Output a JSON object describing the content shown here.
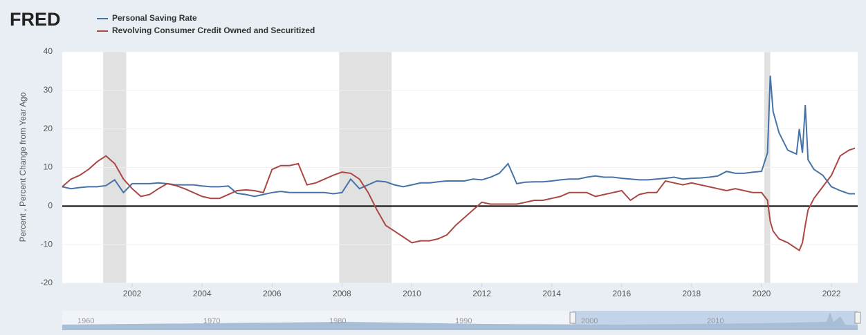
{
  "chart_data": {
    "type": "line",
    "logo": "FRED",
    "ylabel": "Percent , Percent Change from Year Ago",
    "x": [
      2000,
      2000.25,
      2000.5,
      2000.75,
      2001,
      2001.25,
      2001.5,
      2001.75,
      2002,
      2002.25,
      2002.5,
      2002.75,
      2003,
      2003.25,
      2003.5,
      2003.75,
      2004,
      2004.25,
      2004.5,
      2004.75,
      2005,
      2005.25,
      2005.5,
      2005.75,
      2006,
      2006.25,
      2006.5,
      2006.75,
      2007,
      2007.25,
      2007.5,
      2007.75,
      2008,
      2008.25,
      2008.5,
      2008.75,
      2009,
      2009.25,
      2009.5,
      2009.75,
      2010,
      2010.25,
      2010.5,
      2010.75,
      2011,
      2011.25,
      2011.5,
      2011.75,
      2012,
      2012.25,
      2012.5,
      2012.75,
      2013,
      2013.25,
      2013.5,
      2013.75,
      2014,
      2014.25,
      2014.5,
      2014.75,
      2015,
      2015.25,
      2015.5,
      2015.75,
      2016,
      2016.25,
      2016.5,
      2016.75,
      2017,
      2017.25,
      2017.5,
      2017.75,
      2018,
      2018.25,
      2018.5,
      2018.75,
      2019,
      2019.25,
      2019.5,
      2019.75,
      2020,
      2020.17,
      2020.25,
      2020.33,
      2020.5,
      2020.75,
      2021,
      2021.08,
      2021.17,
      2021.25,
      2021.33,
      2021.5,
      2021.75,
      2022,
      2022.25,
      2022.5,
      2022.67
    ],
    "series": [
      {
        "name": "Personal Saving Rate",
        "color": "#4572a7",
        "values": [
          5,
          4.5,
          4.8,
          5,
          5,
          5.3,
          6.8,
          3.5,
          5.8,
          5.8,
          5.8,
          6,
          5.8,
          5.5,
          5.5,
          5.5,
          5.2,
          5,
          5,
          5.2,
          3.3,
          3,
          2.5,
          3,
          3.5,
          3.8,
          3.5,
          3.5,
          3.5,
          3.5,
          3.5,
          3.2,
          3.5,
          7,
          4.5,
          5.5,
          6.5,
          6.3,
          5.5,
          5,
          5.5,
          6,
          6,
          6.3,
          6.5,
          6.5,
          6.5,
          7,
          6.8,
          7.5,
          8.5,
          11,
          5.8,
          6.2,
          6.3,
          6.3,
          6.5,
          6.8,
          7,
          7,
          7.5,
          7.8,
          7.5,
          7.5,
          7.2,
          7,
          6.8,
          6.8,
          7,
          7.2,
          7.5,
          7,
          7.2,
          7.3,
          7.5,
          7.8,
          9,
          8.5,
          8.5,
          8.8,
          9,
          13.8,
          33.8,
          24.5,
          19,
          14.5,
          13.5,
          20,
          13.8,
          26.2,
          12,
          9.5,
          8,
          5,
          4,
          3.2,
          3.2
        ]
      },
      {
        "name": "Revolving Consumer Credit Owned and Securitized",
        "color": "#aa4643",
        "values": [
          5,
          7,
          8,
          9.5,
          11.5,
          13,
          11,
          7,
          4.5,
          2.5,
          3,
          4.5,
          5.8,
          5.3,
          4.5,
          3.5,
          2.5,
          2,
          2,
          3,
          4,
          4.2,
          4,
          3.5,
          9.5,
          10.5,
          10.5,
          11,
          5.5,
          6,
          7,
          8,
          8.8,
          8.5,
          7,
          3.5,
          -1,
          -5,
          -6.5,
          -8,
          -9.5,
          -9,
          -9,
          -8.5,
          -7.5,
          -5,
          -3,
          -1,
          1,
          0.5,
          0.5,
          0.5,
          0.5,
          1,
          1.5,
          1.5,
          2,
          2.5,
          3.5,
          3.5,
          3.5,
          2.5,
          3,
          3.5,
          4,
          1.5,
          3,
          3.5,
          3.5,
          6.5,
          6,
          5.5,
          6,
          5.5,
          5,
          4.5,
          4,
          4.5,
          4,
          3.5,
          3.5,
          1.5,
          -4,
          -6.5,
          -8.5,
          -9.5,
          -11,
          -11.5,
          -9.5,
          -5,
          -1,
          2,
          5,
          8,
          13,
          14.5,
          15
        ]
      }
    ],
    "recessions": [
      [
        2001.17,
        2001.83
      ],
      [
        2007.92,
        2009.42
      ],
      [
        2020.08,
        2020.25
      ]
    ],
    "xlim": [
      2000,
      2022.75
    ],
    "xticks": [
      2002,
      2004,
      2006,
      2008,
      2010,
      2012,
      2014,
      2016,
      2018,
      2020,
      2022
    ],
    "ylim": [
      -20,
      40
    ],
    "yticks": [
      -20,
      -10,
      0,
      10,
      20,
      30,
      40
    ],
    "grid": true,
    "navigator_labels": [
      1960,
      1970,
      1980,
      1990,
      2000,
      2010
    ]
  }
}
